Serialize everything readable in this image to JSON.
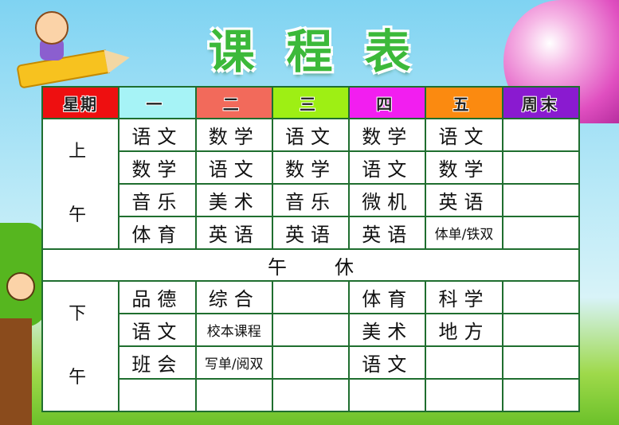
{
  "title": "课程表",
  "header": {
    "label": "星期",
    "days": [
      {
        "label": "一",
        "color": "#a6f3f6"
      },
      {
        "label": "二",
        "color": "#f26a5b"
      },
      {
        "label": "三",
        "color": "#9eef14"
      },
      {
        "label": "四",
        "color": "#f21ef0"
      },
      {
        "label": "五",
        "color": "#fb8a10"
      },
      {
        "label": "周末",
        "color": "#8a1ad0"
      }
    ],
    "label_color": "#ee0f10"
  },
  "morning": {
    "label_top": "上",
    "label_bottom": "午",
    "rows": [
      [
        "语文",
        "数学",
        "语文",
        "数学",
        "语文",
        ""
      ],
      [
        "数学",
        "语文",
        "数学",
        "语文",
        "数学",
        ""
      ],
      [
        "音乐",
        "美术",
        "音乐",
        "微机",
        "英语",
        ""
      ],
      [
        "体育",
        "英语",
        "英语",
        "英语",
        "体单/铁双",
        ""
      ]
    ]
  },
  "noon": {
    "left": "午",
    "right": "休"
  },
  "afternoon": {
    "label_top": "下",
    "label_bottom": "午",
    "rows": [
      [
        "品德",
        "综合",
        "",
        "体育",
        "科学",
        ""
      ],
      [
        "语文",
        "校本课程",
        "",
        "美术",
        "地方",
        ""
      ],
      [
        "班会",
        "写单/阅双",
        "",
        "语文",
        "",
        ""
      ],
      [
        "",
        "",
        "",
        "",
        "",
        ""
      ]
    ]
  }
}
